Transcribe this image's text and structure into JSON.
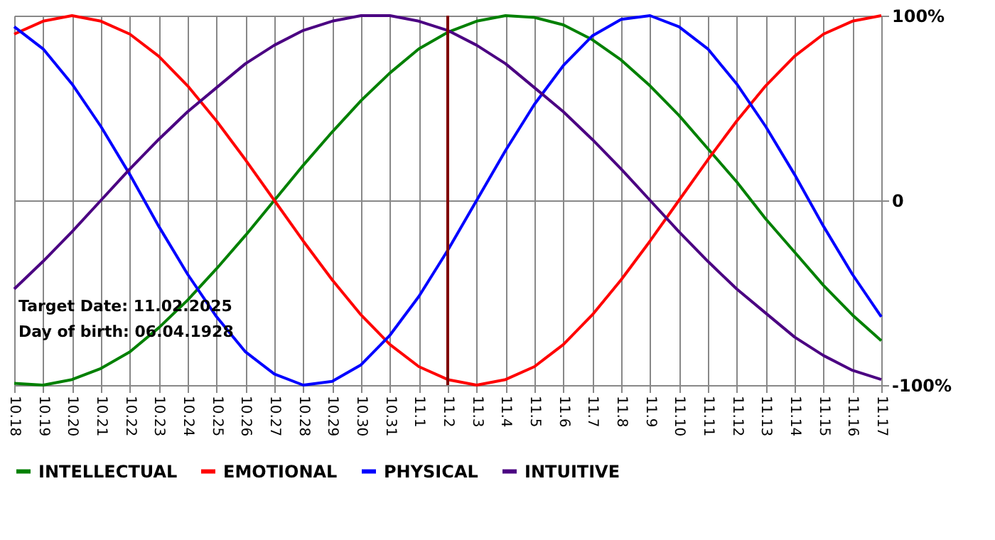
{
  "chart_data": {
    "type": "line",
    "categories": [
      "10.18",
      "10.19",
      "10.20",
      "10.21",
      "10.22",
      "10.23",
      "10.24",
      "10.25",
      "10.26",
      "10.27",
      "10.28",
      "10.29",
      "10.30",
      "10.31",
      "11.1",
      "11.2",
      "11.3",
      "11.4",
      "11.5",
      "11.6",
      "11.7",
      "11.8",
      "11.9",
      "11.10",
      "11.11",
      "11.12",
      "11.13",
      "11.14",
      "11.15",
      "11.16",
      "11.17"
    ],
    "series": [
      {
        "name": "INTELLECTUAL",
        "color": "#008000",
        "values": [
          -99,
          -100,
          -97,
          -91,
          -82,
          -69,
          -54,
          -37,
          -19,
          0,
          19,
          37,
          54,
          69,
          82,
          91,
          97,
          100,
          99,
          95,
          87,
          76,
          62,
          46,
          28,
          10,
          -10,
          -28,
          -46,
          -62,
          -76
        ]
      },
      {
        "name": "EMOTIONAL",
        "color": "#ff0000",
        "values": [
          90,
          97,
          100,
          97,
          90,
          78,
          62,
          43,
          22,
          0,
          -22,
          -43,
          -62,
          -78,
          -90,
          -97,
          -100,
          -97,
          -90,
          -78,
          -62,
          -43,
          -22,
          0,
          22,
          43,
          62,
          78,
          90,
          97,
          100
        ]
      },
      {
        "name": "PHYSICAL",
        "color": "#0000ff",
        "values": [
          94,
          82,
          63,
          40,
          14,
          -14,
          -40,
          -63,
          -82,
          -94,
          -100,
          -98,
          -89,
          -73,
          -52,
          -27,
          0,
          27,
          52,
          73,
          89,
          98,
          100,
          94,
          82,
          63,
          40,
          14,
          -14,
          -40,
          -63
        ]
      },
      {
        "name": "INTUITIVE",
        "color": "#4b0082",
        "values": [
          -48,
          -33,
          -17,
          0,
          17,
          33,
          48,
          61,
          74,
          84,
          92,
          97,
          100,
          100,
          97,
          92,
          84,
          74,
          61,
          48,
          33,
          17,
          0,
          -17,
          -33,
          -48,
          -61,
          -74,
          -84,
          -92,
          -97
        ]
      }
    ],
    "ylim": [
      -100,
      100
    ],
    "yticks": [
      {
        "value": -100,
        "label": "-100%"
      },
      0,
      {
        "value": 100,
        "label": "100%"
      }
    ],
    "ref_lines": [
      {
        "axis": "x",
        "value": "11.2",
        "color": "#800000"
      }
    ],
    "annotations": [
      "Target Date: 11.02.2025",
      "Day of birth: 06.04.1928"
    ],
    "grid": true,
    "legend": "bottom",
    "marker": "none",
    "line_style": "solid"
  }
}
